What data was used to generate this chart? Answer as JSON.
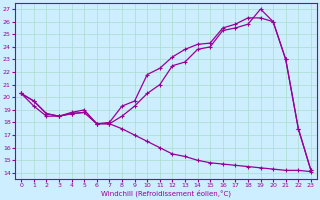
{
  "xlabel": "Windchill (Refroidissement éolien,°C)",
  "bg_color": "#cceeff",
  "grid_color": "#aaddcc",
  "line_color": "#990099",
  "xlim": [
    -0.5,
    23.5
  ],
  "ylim": [
    13.5,
    27.5
  ],
  "xticks": [
    0,
    1,
    2,
    3,
    4,
    5,
    6,
    7,
    8,
    9,
    10,
    11,
    12,
    13,
    14,
    15,
    16,
    17,
    18,
    19,
    20,
    21,
    22,
    23
  ],
  "yticks": [
    14,
    15,
    16,
    17,
    18,
    19,
    20,
    21,
    22,
    23,
    24,
    25,
    26,
    27
  ],
  "line1_x": [
    0,
    1,
    2,
    3,
    4,
    5,
    6,
    7,
    8,
    9,
    10,
    11,
    12,
    13,
    14,
    15,
    16,
    17,
    18,
    19,
    20,
    21,
    22,
    23
  ],
  "line1_y": [
    20.3,
    19.7,
    18.7,
    18.5,
    18.7,
    18.8,
    17.9,
    17.9,
    18.5,
    19.3,
    20.3,
    21.0,
    22.5,
    22.8,
    23.8,
    24.0,
    25.3,
    25.5,
    25.8,
    27.0,
    26.0,
    23.0,
    17.5,
    14.2
  ],
  "line2_x": [
    0,
    1,
    2,
    3,
    4,
    5,
    6,
    7,
    8,
    9,
    10,
    11,
    12,
    13,
    14,
    15,
    16,
    17,
    18,
    19,
    20,
    21,
    22,
    23
  ],
  "line2_y": [
    20.3,
    19.3,
    18.5,
    18.5,
    18.8,
    19.0,
    17.9,
    18.0,
    19.3,
    19.7,
    21.8,
    22.3,
    23.2,
    23.8,
    24.2,
    24.3,
    25.5,
    25.8,
    26.3,
    26.3,
    26.0,
    23.0,
    17.5,
    14.2
  ],
  "line3_x": [
    0,
    1,
    2,
    3,
    4,
    5,
    6,
    7,
    8,
    9,
    10,
    11,
    12,
    13,
    14,
    15,
    16,
    17,
    18,
    19,
    20,
    21,
    22,
    23
  ],
  "line3_y": [
    20.3,
    19.7,
    18.7,
    18.5,
    18.7,
    18.8,
    17.9,
    17.9,
    17.5,
    17.0,
    16.5,
    16.0,
    15.5,
    15.3,
    15.0,
    14.8,
    14.7,
    14.6,
    14.5,
    14.4,
    14.3,
    14.2,
    14.2,
    14.1
  ]
}
